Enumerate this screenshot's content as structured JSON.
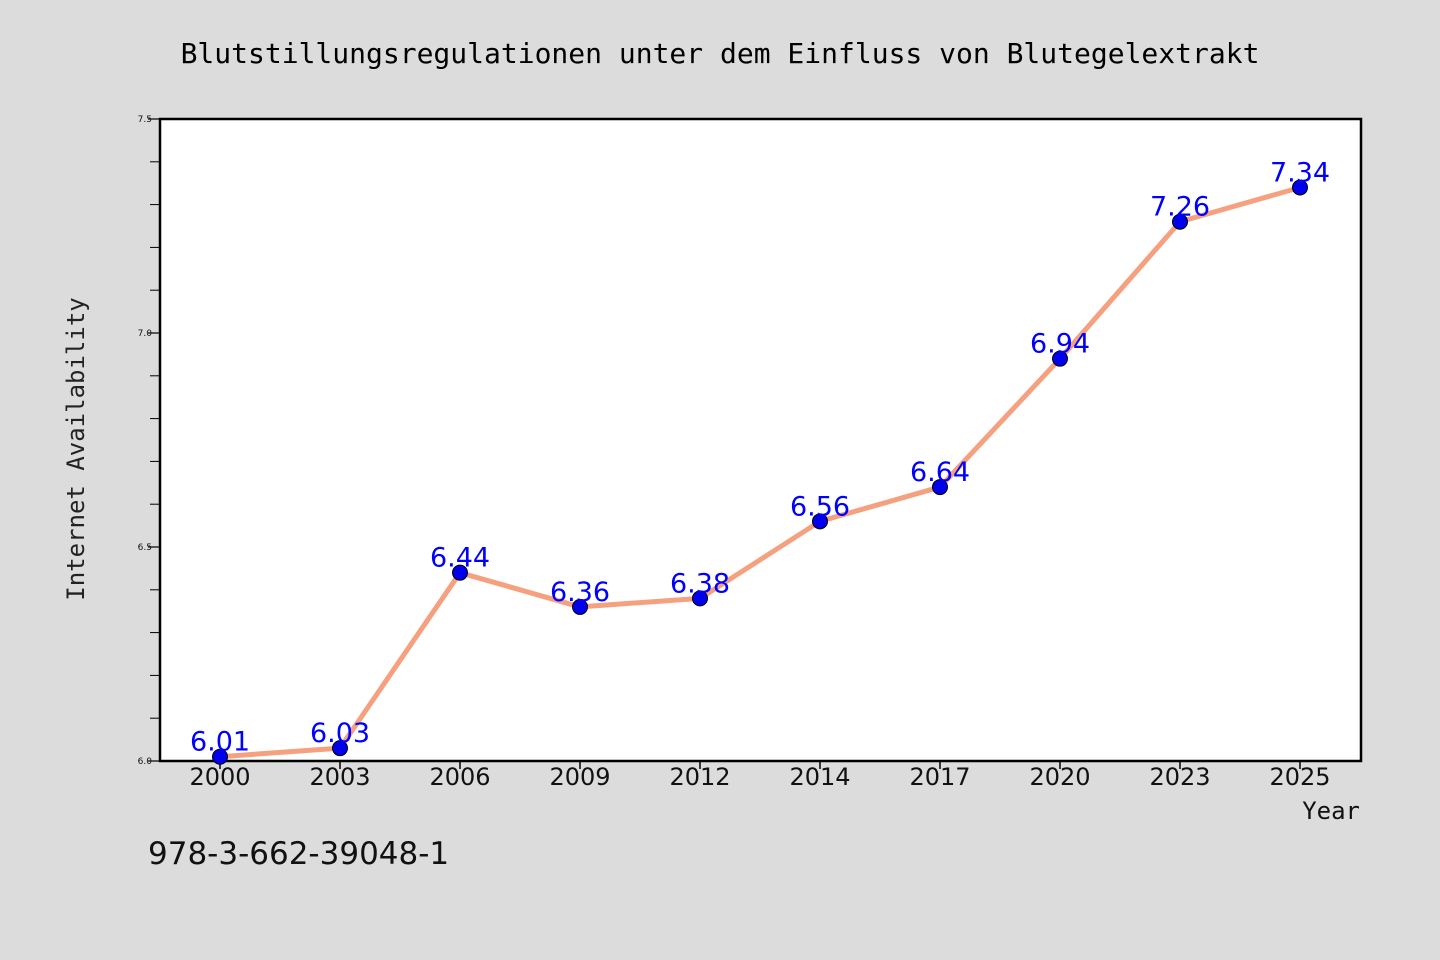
{
  "chart_data": {
    "type": "line",
    "title": "Blutstillungsregulationen unter dem Einfluss von Blutegelextrakt",
    "xlabel": "Year",
    "ylabel": "Internet Availability",
    "categories": [
      "2000",
      "2003",
      "2006",
      "2009",
      "2012",
      "2014",
      "2017",
      "2020",
      "2023",
      "2025"
    ],
    "values": [
      6.01,
      6.03,
      6.44,
      6.36,
      6.38,
      6.56,
      6.64,
      6.94,
      7.26,
      7.34
    ],
    "data_labels": [
      "6.01",
      "6.03",
      "6.44",
      "6.36",
      "6.38",
      "6.56",
      "6.64",
      "6.94",
      "7.26",
      "7.34"
    ],
    "ylim": [
      6.0,
      7.5
    ],
    "yticks": [
      "6.0",
      "6.5",
      "7.0",
      "7.5"
    ],
    "grid": false,
    "legend": "none",
    "colors": {
      "line": "#f5a07f",
      "marker": "#0000ee",
      "label": "#0000ff",
      "plot_bg": "#ffffff",
      "page_bg": "#dcdcdc"
    }
  },
  "footer": {
    "isbn": "978-3-662-39048-1"
  }
}
